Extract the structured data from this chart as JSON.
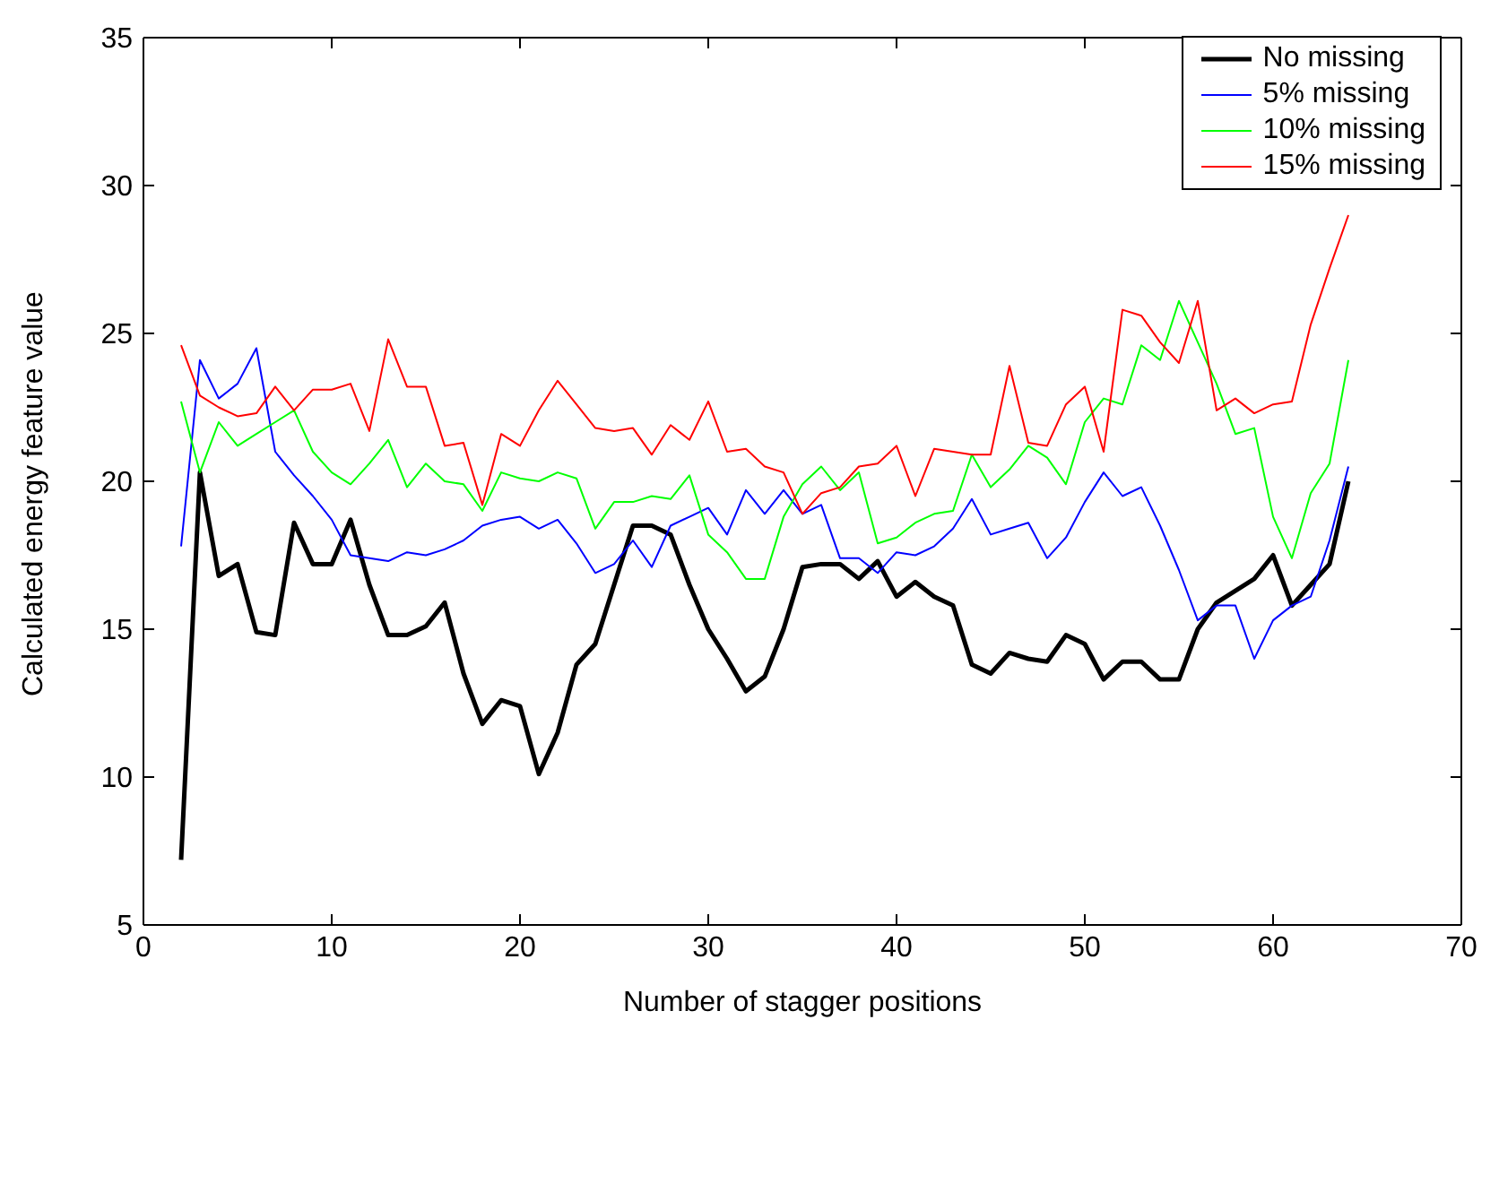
{
  "chart_data": {
    "type": "line",
    "xlabel": "Number of stagger positions",
    "ylabel": "Calculated energy feature value",
    "x": [
      2,
      3,
      4,
      5,
      6,
      7,
      8,
      9,
      10,
      11,
      12,
      13,
      14,
      15,
      16,
      17,
      18,
      19,
      20,
      21,
      22,
      23,
      24,
      25,
      26,
      27,
      28,
      29,
      30,
      31,
      32,
      33,
      34,
      35,
      36,
      37,
      38,
      39,
      40,
      41,
      42,
      43,
      44,
      45,
      46,
      47,
      48,
      49,
      50,
      51,
      52,
      53,
      54,
      55,
      56,
      57,
      58,
      59,
      60,
      61,
      62,
      63,
      64
    ],
    "series": [
      {
        "name": "No missing",
        "color": "#000000",
        "values": [
          7.2,
          20.3,
          16.8,
          17.2,
          14.9,
          14.8,
          18.6,
          17.2,
          17.2,
          18.7,
          16.5,
          14.8,
          14.8,
          15.1,
          15.9,
          13.5,
          11.8,
          12.6,
          12.4,
          10.1,
          11.5,
          13.8,
          14.5,
          16.5,
          18.5,
          18.5,
          18.2,
          16.5,
          15.0,
          14.0,
          12.9,
          13.4,
          15.0,
          17.1,
          17.2,
          17.2,
          16.7,
          17.3,
          16.1,
          16.6,
          16.1,
          15.8,
          13.8,
          13.5,
          14.2,
          14.0,
          13.9,
          14.8,
          14.5,
          13.3,
          13.9,
          13.9,
          13.3,
          13.3,
          15.0,
          15.9,
          16.3,
          16.7,
          17.5,
          15.8,
          16.5,
          17.2,
          20.0
        ]
      },
      {
        "name": "5% missing",
        "color": "#0000ff",
        "values": [
          17.8,
          24.1,
          22.8,
          23.3,
          24.5,
          21.0,
          20.2,
          19.5,
          18.7,
          17.5,
          17.4,
          17.3,
          17.6,
          17.5,
          17.7,
          18.0,
          18.5,
          18.7,
          18.8,
          18.4,
          18.7,
          17.9,
          16.9,
          17.2,
          18.0,
          17.1,
          18.5,
          18.8,
          19.1,
          18.2,
          19.7,
          18.9,
          19.7,
          18.9,
          19.2,
          17.4,
          17.4,
          16.9,
          17.6,
          17.5,
          17.8,
          18.4,
          19.4,
          18.2,
          18.4,
          18.6,
          17.4,
          18.1,
          19.3,
          20.3,
          19.5,
          19.8,
          18.5,
          17.0,
          15.3,
          15.8,
          15.8,
          14.0,
          15.3,
          15.8,
          16.1,
          18.0,
          20.5
        ]
      },
      {
        "name": "10% missing",
        "color": "#00ff00",
        "values": [
          22.7,
          20.3,
          22.0,
          21.2,
          21.6,
          22.0,
          22.4,
          21.0,
          20.3,
          19.9,
          20.6,
          21.4,
          19.8,
          20.6,
          20.0,
          19.9,
          19.0,
          20.3,
          20.1,
          20.0,
          20.3,
          20.1,
          18.4,
          19.3,
          19.3,
          19.5,
          19.4,
          20.2,
          18.2,
          17.6,
          16.7,
          16.7,
          18.8,
          19.9,
          20.5,
          19.7,
          20.3,
          17.9,
          18.1,
          18.6,
          18.9,
          19.0,
          20.9,
          19.8,
          20.4,
          21.2,
          20.8,
          19.9,
          22.0,
          22.8,
          22.6,
          24.6,
          24.1,
          26.1,
          24.7,
          23.3,
          21.6,
          21.8,
          18.8,
          17.4,
          19.6,
          20.6,
          24.1
        ]
      },
      {
        "name": "15% missing",
        "color": "#ff0000",
        "values": [
          24.6,
          22.9,
          22.5,
          22.2,
          22.3,
          23.2,
          22.4,
          23.1,
          23.1,
          23.3,
          21.7,
          24.8,
          23.2,
          23.2,
          21.2,
          21.3,
          19.2,
          21.6,
          21.2,
          22.4,
          23.4,
          22.6,
          21.8,
          21.7,
          21.8,
          20.9,
          21.9,
          21.4,
          22.7,
          21.0,
          21.1,
          20.5,
          20.3,
          18.9,
          19.6,
          19.8,
          20.5,
          20.6,
          21.2,
          19.5,
          21.1,
          21.0,
          20.9,
          20.9,
          23.9,
          21.3,
          21.2,
          22.6,
          23.2,
          21.0,
          25.8,
          25.6,
          24.7,
          24.0,
          26.1,
          22.4,
          22.8,
          22.3,
          22.6,
          22.7,
          25.3,
          27.2,
          29.0
        ]
      }
    ],
    "xlim": [
      0,
      70
    ],
    "xticks": [
      0,
      10,
      20,
      30,
      40,
      50,
      60,
      70
    ],
    "ylim": [
      5,
      35
    ],
    "yticks": [
      5,
      10,
      15,
      20,
      25,
      30,
      35
    ],
    "grid": false,
    "legend": "top right"
  }
}
